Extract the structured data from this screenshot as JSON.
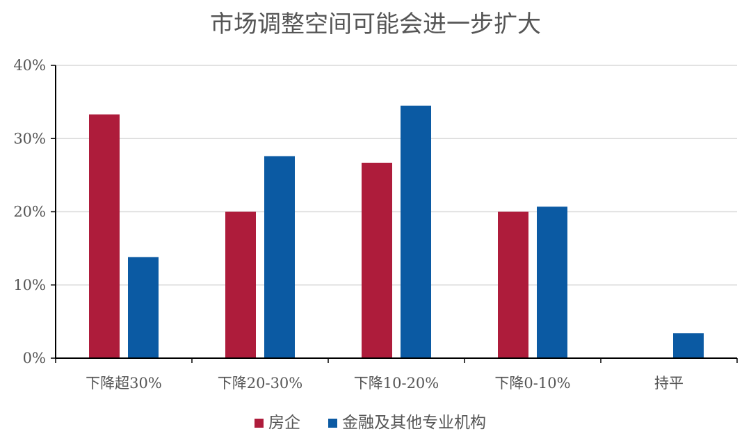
{
  "chart_data": {
    "type": "bar",
    "title": "市场调整空间可能会进一步扩大",
    "categories": [
      "下降超30%",
      "下降20-30%",
      "下降10-20%",
      "下降0-10%",
      "持平"
    ],
    "series": [
      {
        "name": "房企",
        "color": "#AE1C3B",
        "values": [
          33.3,
          20.0,
          26.7,
          20.0,
          0
        ]
      },
      {
        "name": "金融及其他专业机构",
        "color": "#0B5AA3",
        "values": [
          13.8,
          27.6,
          34.5,
          20.7,
          3.4
        ]
      }
    ],
    "yticks": [
      "0%",
      "10%",
      "20%",
      "30%",
      "40%"
    ],
    "ylim": [
      0,
      40
    ],
    "grid": true,
    "legend_position": "bottom",
    "xlabel": "",
    "ylabel": ""
  }
}
